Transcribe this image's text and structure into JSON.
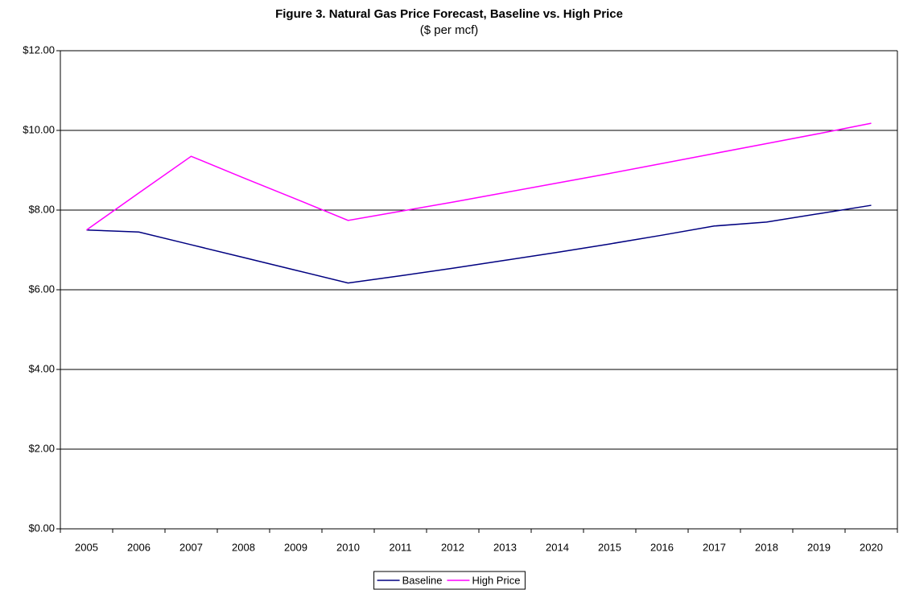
{
  "chart_data": {
    "type": "line",
    "title": "Figure 3. Natural Gas Price Forecast, Baseline vs. High Price",
    "subtitle": "($ per mcf)",
    "categories": [
      "2005",
      "2006",
      "2007",
      "2008",
      "2009",
      "2010",
      "2011",
      "2012",
      "2013",
      "2014",
      "2015",
      "2016",
      "2017",
      "2018",
      "2019",
      "2020"
    ],
    "series": [
      {
        "name": "Baseline",
        "color": "#000080",
        "values": [
          7.5,
          7.45,
          7.13,
          6.81,
          6.49,
          6.17,
          6.35,
          6.54,
          6.74,
          6.94,
          7.15,
          7.37,
          7.6,
          7.7,
          7.91,
          8.12
        ]
      },
      {
        "name": "High Price",
        "color": "#ff00ff",
        "values": [
          7.5,
          8.43,
          9.35,
          8.81,
          8.28,
          7.74,
          7.97,
          8.2,
          8.44,
          8.68,
          8.92,
          9.17,
          9.42,
          9.67,
          9.92,
          10.18
        ]
      }
    ],
    "ylim": [
      0,
      12
    ],
    "yticks": [
      {
        "value": 0,
        "label": "$0.00"
      },
      {
        "value": 2,
        "label": "$2.00"
      },
      {
        "value": 4,
        "label": "$4.00"
      },
      {
        "value": 6,
        "label": "$6.00"
      },
      {
        "value": 8,
        "label": "$8.00"
      },
      {
        "value": 10,
        "label": "$10.00"
      },
      {
        "value": 12,
        "label": "$12.00"
      }
    ],
    "grid": true,
    "legend": "bottom"
  }
}
